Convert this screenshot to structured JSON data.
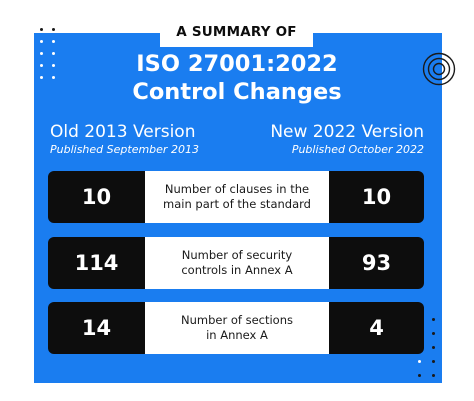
{
  "header": {
    "banner": "A SUMMARY OF",
    "title_line1": "ISO 27001:2022",
    "title_line2": "Control Changes"
  },
  "old_version": {
    "label": "Old 2013 Version",
    "published": "Published September 2013"
  },
  "new_version": {
    "label": "New 2022 Version",
    "published": "Published October 2022"
  },
  "rows": [
    {
      "old": "10",
      "desc_line1": "Number of clauses in the",
      "desc_line2": "main part of the standard",
      "new": "10"
    },
    {
      "old": "114",
      "desc_line1": "Number of security",
      "desc_line2": "controls in Annex A",
      "new": "93"
    },
    {
      "old": "14",
      "desc_line1": "Number of sections",
      "desc_line2": "in Annex A",
      "new": "4"
    }
  ],
  "colors": {
    "panel_blue": "#1a7df0",
    "row_black": "#0d0d0d",
    "dot_white": "#ffffff",
    "dot_dark": "#1a1a1a"
  },
  "icons": {
    "decor_left": "dot-grid-icon",
    "decor_right": "concentric-circles-icon",
    "decor_bottom": "dot-grid-icon"
  }
}
